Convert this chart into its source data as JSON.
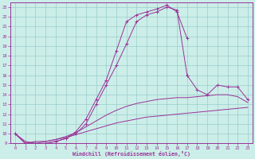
{
  "xlabel": "Windchill (Refroidissement éolien,°C)",
  "ylabel": "",
  "background_color": "#cceee8",
  "grid_color": "#99cccc",
  "line_color": "#993399",
  "xlim": [
    -0.5,
    23.5
  ],
  "ylim": [
    9,
    23.5
  ],
  "xticks": [
    0,
    1,
    2,
    3,
    4,
    5,
    6,
    7,
    8,
    9,
    10,
    11,
    12,
    13,
    14,
    15,
    16,
    17,
    18,
    19,
    20,
    21,
    22,
    23
  ],
  "yticks": [
    9,
    10,
    11,
    12,
    13,
    14,
    15,
    16,
    17,
    18,
    19,
    20,
    21,
    22,
    23
  ],
  "lines": [
    {
      "x": [
        0,
        1,
        2,
        3,
        4,
        5,
        6,
        7,
        8,
        9,
        10,
        11,
        12,
        13,
        14,
        15,
        16,
        17
      ],
      "y": [
        10.0,
        9.0,
        9.0,
        9.0,
        9.2,
        9.5,
        10.2,
        11.5,
        13.5,
        15.5,
        18.5,
        21.5,
        22.2,
        22.5,
        22.8,
        23.2,
        22.5,
        19.8
      ],
      "marker": "+"
    },
    {
      "x": [
        0,
        1,
        2,
        3,
        4,
        5,
        6,
        7,
        8,
        9,
        10,
        11,
        12,
        13,
        14,
        15,
        16,
        17
      ],
      "y": [
        10.0,
        9.0,
        9.0,
        9.0,
        9.2,
        9.5,
        10.0,
        11.0,
        13.0,
        15.0,
        17.0,
        19.2,
        21.5,
        22.2,
        22.5,
        23.0,
        22.7,
        16.0
      ],
      "marker": "+"
    },
    {
      "x": [
        0,
        1,
        2,
        3,
        4,
        5,
        6,
        7,
        8,
        9,
        10,
        11,
        12,
        13,
        14,
        15,
        16,
        17,
        18,
        19,
        20,
        21,
        22,
        23
      ],
      "y": [
        10.0,
        9.0,
        9.2,
        9.2,
        9.4,
        9.7,
        10.1,
        10.7,
        11.3,
        11.9,
        12.4,
        12.8,
        13.1,
        13.3,
        13.5,
        13.6,
        13.7,
        13.7,
        13.8,
        13.9,
        14.0,
        14.0,
        13.8,
        13.2
      ],
      "marker": null
    },
    {
      "x": [
        0,
        1,
        2,
        3,
        4,
        5,
        6,
        7,
        8,
        9,
        10,
        11,
        12,
        13,
        14,
        15,
        16,
        17,
        18,
        19,
        20,
        21,
        22,
        23
      ],
      "y": [
        10.0,
        9.2,
        9.0,
        9.2,
        9.4,
        9.6,
        9.9,
        10.2,
        10.5,
        10.8,
        11.1,
        11.3,
        11.5,
        11.7,
        11.8,
        11.9,
        12.0,
        12.1,
        12.2,
        12.3,
        12.4,
        12.5,
        12.6,
        12.7
      ],
      "marker": null
    },
    {
      "x": [
        17,
        18,
        19,
        20,
        21,
        22,
        23
      ],
      "y": [
        16.0,
        14.5,
        14.0,
        15.0,
        14.8,
        14.8,
        13.5
      ],
      "marker": "+"
    }
  ]
}
